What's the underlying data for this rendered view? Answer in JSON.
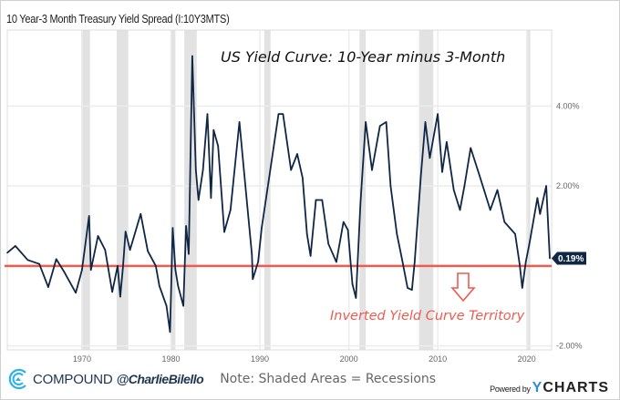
{
  "chart_data": {
    "type": "line",
    "title": "10 Year-3 Month Treasury Yield Spread (I:10Y3MTS)",
    "annotation_title": "US Yield Curve: 10-Year minus 3-Month",
    "annotation_inverted": "Inverted Yield Curve Territory",
    "note": "Note: Shaded Areas = Recessions",
    "xlim": [
      1961.6,
      2022.8
    ],
    "ylim": [
      -2.1,
      5.9
    ],
    "x_ticks": [
      1970,
      1980,
      1990,
      2000,
      2010,
      2020
    ],
    "x_tick_labels": [
      "1970",
      "1980",
      "1990",
      "2000",
      "2010",
      "2020"
    ],
    "y_ticks": [
      4,
      2,
      -2
    ],
    "y_tick_labels": [
      "4.00%",
      "2.00%",
      "-2.00%"
    ],
    "grid": true,
    "zero_line": 0,
    "last_value_label": "0.19%",
    "recessions": [
      [
        1969.9,
        1970.9
      ],
      [
        1973.9,
        1975.2
      ],
      [
        1980.0,
        1980.5
      ],
      [
        1981.5,
        1982.9
      ],
      [
        1990.5,
        1991.2
      ],
      [
        2001.2,
        2001.9
      ],
      [
        2007.9,
        2009.5
      ],
      [
        2020.1,
        2020.4
      ]
    ],
    "series": [
      {
        "color": "#0f2645",
        "x": [
          1961.6,
          1962.5,
          1963.9,
          1965.2,
          1966.2,
          1967.1,
          1968.0,
          1969.3,
          1970.0,
          1970.8,
          1971.0,
          1971.8,
          1972.6,
          1973.4,
          1974.0,
          1974.3,
          1974.6,
          1974.9,
          1975.4,
          1976.6,
          1977.4,
          1978.3,
          1978.7,
          1979.5,
          1979.9,
          1980.2,
          1980.5,
          1980.8,
          1981.4,
          1981.7,
          1982.0,
          1982.4,
          1982.8,
          1983.1,
          1983.6,
          1984.1,
          1984.5,
          1984.8,
          1985.3,
          1986.0,
          1986.7,
          1987.2,
          1987.7,
          1988.2,
          1989.1,
          1989.2,
          1989.8,
          1990.2,
          1991.1,
          1992.1,
          1992.6,
          1993.5,
          1994.2,
          1994.8,
          1995.3,
          1995.7,
          1996.3,
          1997.0,
          1997.7,
          1998.6,
          1999.4,
          1999.9,
          2000.4,
          2000.8,
          2001.3,
          2001.9,
          2002.6,
          2003.5,
          2004.2,
          2004.7,
          2005.4,
          2006.0,
          2006.6,
          2007.1,
          2007.4,
          2008.1,
          2008.6,
          2009.1,
          2010.0,
          2010.5,
          2011.0,
          2011.8,
          2012.5,
          2013.0,
          2013.7,
          2014.5,
          2015.2,
          2015.9,
          2016.7,
          2017.5,
          2018.7,
          2019.2,
          2019.5,
          2019.9,
          2020.3,
          2021.2,
          2021.5,
          2022.2,
          2022.6
        ],
        "y": [
          0.33,
          0.5,
          0.15,
          0.05,
          -0.53,
          0.17,
          -0.15,
          -0.67,
          -0.1,
          1.25,
          -0.1,
          0.75,
          0.4,
          -0.65,
          0,
          -0.77,
          -0.05,
          0.86,
          0.4,
          1.3,
          0.37,
          0,
          -0.5,
          -1.0,
          -1.65,
          0.95,
          -0.1,
          -0.5,
          -1.0,
          1.0,
          0.3,
          5.25,
          2.4,
          1.65,
          2.4,
          3.8,
          1.7,
          3.4,
          3.0,
          0.85,
          1.4,
          2.5,
          3.6,
          2.4,
          0.28,
          -0.33,
          0.1,
          0.95,
          2.3,
          3.8,
          3.8,
          2.4,
          2.8,
          2.2,
          0.8,
          0.25,
          1.65,
          1.65,
          0.55,
          0.1,
          1.1,
          0.9,
          -0.45,
          -0.8,
          1.55,
          3.6,
          2.4,
          3.5,
          3.6,
          2.0,
          0.8,
          0.15,
          -0.55,
          -0.6,
          0.1,
          2.25,
          3.6,
          2.7,
          3.8,
          2.35,
          3.1,
          1.9,
          1.4,
          2.0,
          2.95,
          2.4,
          1.9,
          1.4,
          1.9,
          1.1,
          0.8,
          0.05,
          -0.55,
          0.1,
          0.55,
          1.7,
          1.3,
          2.0,
          0.19
        ]
      }
    ]
  },
  "colors": {
    "line": "#0f2645",
    "zero_line": "#f05a4f",
    "recession": "#e2e2e2",
    "annotation_red": "#f05a4f"
  },
  "footer": {
    "brand": "COMPOUND",
    "handle": "@CharlieBilello",
    "powered_by": "Powered by",
    "ycharts": "CHARTS",
    "ycharts_y": "Y"
  }
}
